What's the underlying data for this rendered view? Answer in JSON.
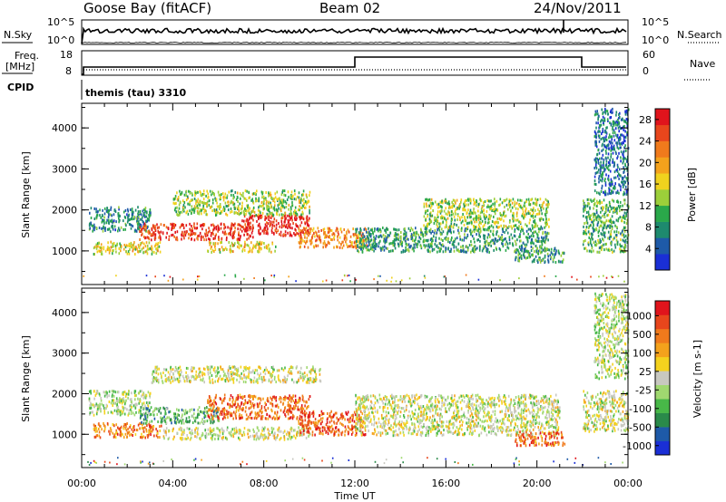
{
  "header": {
    "station": "Goose Bay (fitACF)",
    "beam": "Beam 02",
    "date": "24/Nov/2011"
  },
  "top_strip": {
    "left_label": "N.Sky",
    "left_ticks": [
      "10^5",
      "10^0"
    ],
    "right_label": "N.Search",
    "right_ticks": [
      "10^5",
      "10^0"
    ]
  },
  "freq_strip": {
    "left_label_line1": "Freq.",
    "left_label_line2": "[MHz]",
    "left_ticks": [
      "18",
      "8"
    ],
    "right_label": "Nave",
    "right_ticks": [
      "60",
      "0"
    ],
    "cpid_label": "CPID",
    "cpid_name": "themis (tau) 3310"
  },
  "chart_data": [
    {
      "type": "heatmap",
      "title": "",
      "xlabel": "Time UT",
      "ylabel": "Slant Range [km]",
      "x_ticks": [
        "00:00",
        "04:00",
        "08:00",
        "12:00",
        "16:00",
        "20:00",
        "00:00"
      ],
      "y_ticks": [
        "1000",
        "2000",
        "3000",
        "4000"
      ],
      "ylim": [
        180,
        4600
      ],
      "xlim_hours": [
        0,
        24
      ],
      "colorbar": {
        "label": "Power [dB]",
        "ticks": [
          "4",
          "8",
          "12",
          "16",
          "20",
          "24",
          "28"
        ],
        "colors": [
          "#1a2fd6",
          "#1e5aa8",
          "#1e8a6e",
          "#2aa84a",
          "#9ccf3a",
          "#f0d21e",
          "#f4a21c",
          "#f07a1c",
          "#e8461c",
          "#e0141c"
        ]
      },
      "echo_regions": [
        {
          "t0": 0.3,
          "t1": 3.0,
          "r0": 1500,
          "r1": 2100,
          "level": 0.25
        },
        {
          "t0": 0.5,
          "t1": 3.5,
          "r0": 950,
          "r1": 1250,
          "level": 0.55
        },
        {
          "t0": 2.5,
          "t1": 7.5,
          "r0": 1300,
          "r1": 1700,
          "level": 0.9
        },
        {
          "t0": 5.5,
          "t1": 8.5,
          "r0": 1000,
          "r1": 1250,
          "level": 0.55
        },
        {
          "t0": 7.0,
          "t1": 10.0,
          "r0": 1400,
          "r1": 1900,
          "level": 0.95
        },
        {
          "t0": 4.0,
          "t1": 10.0,
          "r0": 1900,
          "r1": 2500,
          "level": 0.45
        },
        {
          "t0": 9.5,
          "t1": 12.5,
          "r0": 1100,
          "r1": 1600,
          "level": 0.7
        },
        {
          "t0": 12.0,
          "t1": 20.5,
          "r0": 1000,
          "r1": 1600,
          "level": 0.3
        },
        {
          "t0": 15.0,
          "t1": 20.5,
          "r0": 1600,
          "r1": 2300,
          "level": 0.45
        },
        {
          "t0": 19.0,
          "t1": 21.2,
          "r0": 750,
          "r1": 1100,
          "level": 0.3
        },
        {
          "t0": 22.0,
          "t1": 24.0,
          "r0": 1000,
          "r1": 2300,
          "level": 0.35
        },
        {
          "t0": 22.5,
          "t1": 24.0,
          "r0": 2400,
          "r1": 4500,
          "level": 0.2
        }
      ]
    },
    {
      "type": "heatmap",
      "title": "",
      "xlabel": "Time UT",
      "ylabel": "Slant Range [km]",
      "x_ticks": [
        "00:00",
        "04:00",
        "08:00",
        "12:00",
        "16:00",
        "20:00",
        "00:00"
      ],
      "y_ticks": [
        "1000",
        "2000",
        "3000",
        "4000"
      ],
      "ylim": [
        180,
        4600
      ],
      "xlim_hours": [
        0,
        24
      ],
      "colorbar": {
        "label": "Velocity [m s-1]",
        "ticks": [
          "1000",
          "500",
          "100",
          "25",
          "-25",
          "-100",
          "-500",
          "-1000"
        ],
        "colors": [
          "#1a2fd6",
          "#1e5aa8",
          "#2a8a4a",
          "#48b848",
          "#a0d870",
          "#c8c8c0",
          "#f4d21e",
          "#f4a21c",
          "#f07a1c",
          "#e8461c",
          "#e0141c"
        ]
      },
      "echo_regions": [
        {
          "t0": 0.3,
          "t1": 3.0,
          "r0": 1500,
          "r1": 2100,
          "level": 0.45
        },
        {
          "t0": 0.5,
          "t1": 3.5,
          "r0": 950,
          "r1": 1300,
          "level": 0.75
        },
        {
          "t0": 2.5,
          "t1": 6.0,
          "r0": 1300,
          "r1": 1700,
          "level": 0.3
        },
        {
          "t0": 5.5,
          "t1": 10.0,
          "r0": 1400,
          "r1": 2000,
          "level": 0.8
        },
        {
          "t0": 3.5,
          "t1": 10.0,
          "r0": 900,
          "r1": 1200,
          "level": 0.5
        },
        {
          "t0": 3.0,
          "t1": 10.5,
          "r0": 2300,
          "r1": 2700,
          "level": 0.5
        },
        {
          "t0": 9.5,
          "t1": 12.5,
          "r0": 1000,
          "r1": 1600,
          "level": 0.85
        },
        {
          "t0": 12.0,
          "t1": 21.0,
          "r0": 1000,
          "r1": 2000,
          "level": 0.5
        },
        {
          "t0": 19.0,
          "t1": 21.2,
          "r0": 750,
          "r1": 1100,
          "level": 0.8
        },
        {
          "t0": 22.0,
          "t1": 24.0,
          "r0": 1100,
          "r1": 2100,
          "level": 0.5
        },
        {
          "t0": 22.5,
          "t1": 24.0,
          "r0": 2400,
          "r1": 4500,
          "level": 0.45
        }
      ]
    }
  ]
}
